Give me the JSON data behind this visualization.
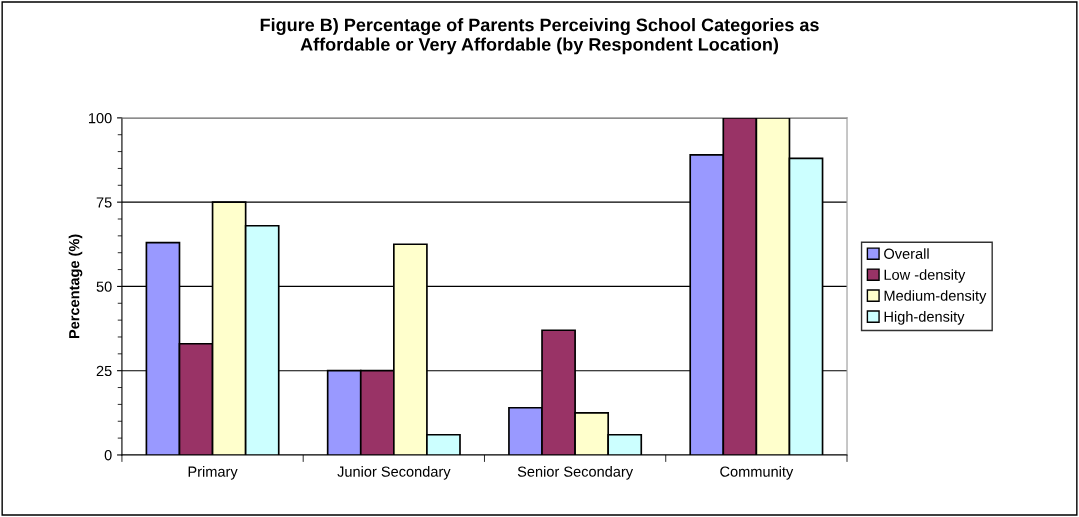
{
  "chart_data": {
    "type": "bar",
    "title": "Figure B) Percentage of Parents Perceiving School Categories as\nAffordable or Very Affordable (by Respondent Location)",
    "ylabel": "Percentage (%)",
    "categories": [
      "Primary",
      "Junior Secondary",
      "Senior Secondary",
      "Community"
    ],
    "series": [
      {
        "name": "Overall",
        "color": "#9999ff",
        "values": [
          63,
          25,
          14,
          89
        ]
      },
      {
        "name": "Low -density",
        "color": "#993366",
        "values": [
          33,
          25,
          37,
          100
        ]
      },
      {
        "name": "Medium-density",
        "color": "#ffffcc",
        "values": [
          75,
          62.5,
          12.5,
          100
        ]
      },
      {
        "name": "High-density",
        "color": "#ccffff",
        "values": [
          68,
          6,
          6,
          88
        ]
      }
    ],
    "ylim": [
      0,
      100
    ],
    "yticks": [
      0,
      25,
      50,
      75,
      100
    ],
    "grid": "y",
    "legend": "right"
  }
}
